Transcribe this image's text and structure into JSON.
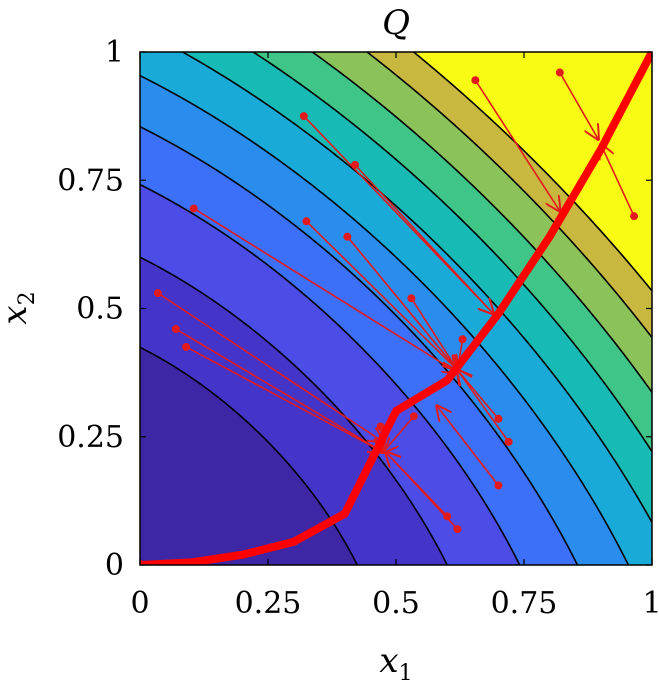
{
  "chart_data": {
    "type": "contour",
    "title": "Q",
    "xlabel": {
      "base": "x",
      "sub": "1"
    },
    "ylabel": {
      "base": "x",
      "sub": "2"
    },
    "xlim": [
      0,
      1
    ],
    "ylim": [
      0,
      1
    ],
    "xticks": [
      0,
      0.25,
      0.5,
      0.75,
      1
    ],
    "yticks": [
      0,
      0.25,
      0.5,
      0.75,
      1
    ],
    "xtick_labels": [
      "0",
      "0.25",
      "0.5",
      "0.75",
      "1"
    ],
    "ytick_labels": [
      "0",
      "0.25",
      "0.5",
      "0.75",
      "1"
    ],
    "grid": false,
    "contour_levels": [
      0.18,
      0.36,
      0.55,
      0.73,
      0.91,
      1.09,
      1.27,
      1.45,
      1.64,
      1.82
    ],
    "color_stops": [
      "#3d27a4",
      "#4434c8",
      "#4b4de6",
      "#3d70f8",
      "#2a8ded",
      "#1aaad8",
      "#17bab4",
      "#3fc588",
      "#8bc35a",
      "#c8b840",
      "#f0c238",
      "#f8e82e",
      "#f9fb14"
    ],
    "curve_color": "#ff0000",
    "arrow_color": "#e31a1c",
    "curve": [
      [
        0,
        0
      ],
      [
        0.1,
        0.005
      ],
      [
        0.2,
        0.02
      ],
      [
        0.3,
        0.045
      ],
      [
        0.4,
        0.1
      ],
      [
        0.5,
        0.3
      ],
      [
        0.6,
        0.36
      ],
      [
        0.7,
        0.49
      ],
      [
        0.8,
        0.64
      ],
      [
        0.9,
        0.81
      ],
      [
        1,
        1
      ]
    ],
    "arrows": [
      {
        "from": [
          0.32,
          0.875
        ],
        "to": [
          0.69,
          0.49
        ]
      },
      {
        "from": [
          0.42,
          0.78
        ],
        "to": [
          0.69,
          0.49
        ]
      },
      {
        "from": [
          0.105,
          0.695
        ],
        "to": [
          0.62,
          0.375
        ]
      },
      {
        "from": [
          0.325,
          0.67
        ],
        "to": [
          0.62,
          0.38
        ]
      },
      {
        "from": [
          0.405,
          0.64
        ],
        "to": [
          0.62,
          0.38
        ]
      },
      {
        "from": [
          0.53,
          0.52
        ],
        "to": [
          0.62,
          0.38
        ]
      },
      {
        "from": [
          0.63,
          0.44
        ],
        "to": [
          0.62,
          0.38
        ]
      },
      {
        "from": [
          0.035,
          0.53
        ],
        "to": [
          0.475,
          0.24
        ]
      },
      {
        "from": [
          0.07,
          0.46
        ],
        "to": [
          0.475,
          0.22
        ]
      },
      {
        "from": [
          0.09,
          0.425
        ],
        "to": [
          0.475,
          0.22
        ]
      },
      {
        "from": [
          0.47,
          0.27
        ],
        "to": [
          0.475,
          0.22
        ]
      },
      {
        "from": [
          0.535,
          0.29
        ],
        "to": [
          0.475,
          0.22
        ]
      },
      {
        "from": [
          0.6,
          0.095
        ],
        "to": [
          0.48,
          0.22
        ]
      },
      {
        "from": [
          0.62,
          0.07
        ],
        "to": [
          0.48,
          0.22
        ]
      },
      {
        "from": [
          0.7,
          0.285
        ],
        "to": [
          0.62,
          0.38
        ]
      },
      {
        "from": [
          0.72,
          0.24
        ],
        "to": [
          0.62,
          0.38
        ]
      },
      {
        "from": [
          0.7,
          0.155
        ],
        "to": [
          0.58,
          0.31
        ]
      },
      {
        "from": [
          0.655,
          0.945
        ],
        "to": [
          0.82,
          0.69
        ]
      },
      {
        "from": [
          0.82,
          0.96
        ],
        "to": [
          0.895,
          0.83
        ]
      },
      {
        "from": [
          0.965,
          0.68
        ],
        "to": [
          0.9,
          0.82
        ]
      }
    ]
  }
}
